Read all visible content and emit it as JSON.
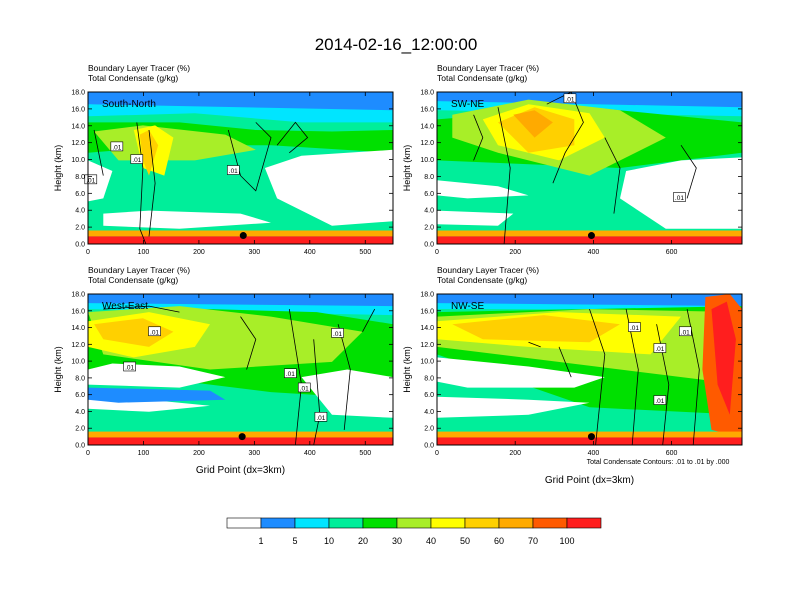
{
  "figure_title": "2014-02-16_12:00:00",
  "footnote": "Total Condensate Contours: .01 to .01 by .000",
  "colors": {
    "scale": [
      "#ffffff",
      "#1e8cff",
      "#00e5ff",
      "#00ee9a",
      "#00e000",
      "#a8ee28",
      "#ffff00",
      "#ffd000",
      "#ffaa00",
      "#ff5a00",
      "#ff1e1e"
    ],
    "contour": "#000000",
    "marker": "#000000"
  },
  "colorbar": {
    "labels": [
      "1",
      "5",
      "10",
      "20",
      "30",
      "40",
      "50",
      "60",
      "70",
      "100"
    ]
  },
  "chart_data": [
    {
      "type": "heatmap",
      "panel": "South-North",
      "title_left": "Boundary Layer Tracer   (%)",
      "subtitle_left": "Total Condensate   (g/kg)",
      "xlabel": "",
      "ylabel": "Height (km)",
      "xlim": [
        0,
        550
      ],
      "ylim": [
        0,
        18
      ],
      "xticks": [
        "0",
        "100",
        "200",
        "300",
        "400",
        "500"
      ],
      "xtick_values": [
        0,
        100,
        200,
        300,
        400,
        500
      ],
      "yticks": [
        "0.0",
        "2.0",
        "4.0",
        "6.0",
        "8.0",
        "10.0",
        "12.0",
        "14.0",
        "16.0",
        "18.0"
      ],
      "contour_labels": [
        {
          "text": ".01",
          "x": 52,
          "y": 11.5
        },
        {
          "text": ".01",
          "x": 88,
          "y": 10.0
        },
        {
          "text": ".01",
          "x": 262,
          "y": 8.7
        },
        {
          "text": ".01",
          "x": 5,
          "y": 7.6
        }
      ],
      "point_marker": {
        "x": 280,
        "y": 1.0
      }
    },
    {
      "type": "heatmap",
      "panel": "SW-NE",
      "title_left": "Boundary Layer Tracer   (%)",
      "subtitle_left": "Total Condensate   (g/kg)",
      "xlabel": "",
      "ylabel": "Height (km)",
      "xlim": [
        0,
        780
      ],
      "ylim": [
        0,
        18
      ],
      "xticks": [
        "0",
        "200",
        "400",
        "600"
      ],
      "xtick_values": [
        0,
        200,
        400,
        600
      ],
      "yticks": [
        "0.0",
        "2.0",
        "4.0",
        "6.0",
        "8.0",
        "10.0",
        "12.0",
        "14.0",
        "16.0",
        "18.0"
      ],
      "contour_labels": [
        {
          "text": ".01",
          "x": 340,
          "y": 17.2
        },
        {
          "text": ".01",
          "x": 620,
          "y": 5.5
        }
      ],
      "point_marker": {
        "x": 395,
        "y": 1.0
      }
    },
    {
      "type": "heatmap",
      "panel": "West-East",
      "title_left": "Boundary Layer Tracer   (%)",
      "subtitle_left": "Total Condensate   (g/kg)",
      "xlabel": "Grid Point (dx=3km)",
      "ylabel": "Height (km)",
      "xlim": [
        0,
        550
      ],
      "ylim": [
        0,
        18
      ],
      "xticks": [
        "0",
        "100",
        "200",
        "300",
        "400",
        "500"
      ],
      "xtick_values": [
        0,
        100,
        200,
        300,
        400,
        500
      ],
      "yticks": [
        "0.0",
        "2.0",
        "4.0",
        "6.0",
        "8.0",
        "10.0",
        "12.0",
        "14.0",
        "16.0",
        "18.0"
      ],
      "contour_labels": [
        {
          "text": ".01",
          "x": 120,
          "y": 13.5
        },
        {
          "text": ".01",
          "x": 75,
          "y": 9.3
        },
        {
          "text": ".01",
          "x": 365,
          "y": 8.5
        },
        {
          "text": ".01",
          "x": 390,
          "y": 6.8
        },
        {
          "text": ".01",
          "x": 420,
          "y": 3.3
        },
        {
          "text": ".01",
          "x": 450,
          "y": 13.3
        }
      ],
      "point_marker": {
        "x": 278,
        "y": 1.0
      }
    },
    {
      "type": "heatmap",
      "panel": "NW-SE",
      "title_left": "Boundary Layer Tracer   (%)",
      "subtitle_left": "Total Condensate   (g/kg)",
      "xlabel": "Grid Point (dx=3km)",
      "ylabel": "Height (km)",
      "xlim": [
        0,
        780
      ],
      "ylim": [
        0,
        18
      ],
      "xticks": [
        "0",
        "200",
        "400",
        "600"
      ],
      "xtick_values": [
        0,
        200,
        400,
        600
      ],
      "yticks": [
        "0.0",
        "2.0",
        "4.0",
        "6.0",
        "8.0",
        "10.0",
        "12.0",
        "14.0",
        "16.0",
        "18.0"
      ],
      "contour_labels": [
        {
          "text": ".01",
          "x": 505,
          "y": 14.0
        },
        {
          "text": ".01",
          "x": 635,
          "y": 13.5
        },
        {
          "text": ".01",
          "x": 570,
          "y": 11.5
        },
        {
          "text": ".01",
          "x": 570,
          "y": 5.3
        }
      ],
      "point_marker": {
        "x": 395,
        "y": 1.0
      }
    }
  ]
}
